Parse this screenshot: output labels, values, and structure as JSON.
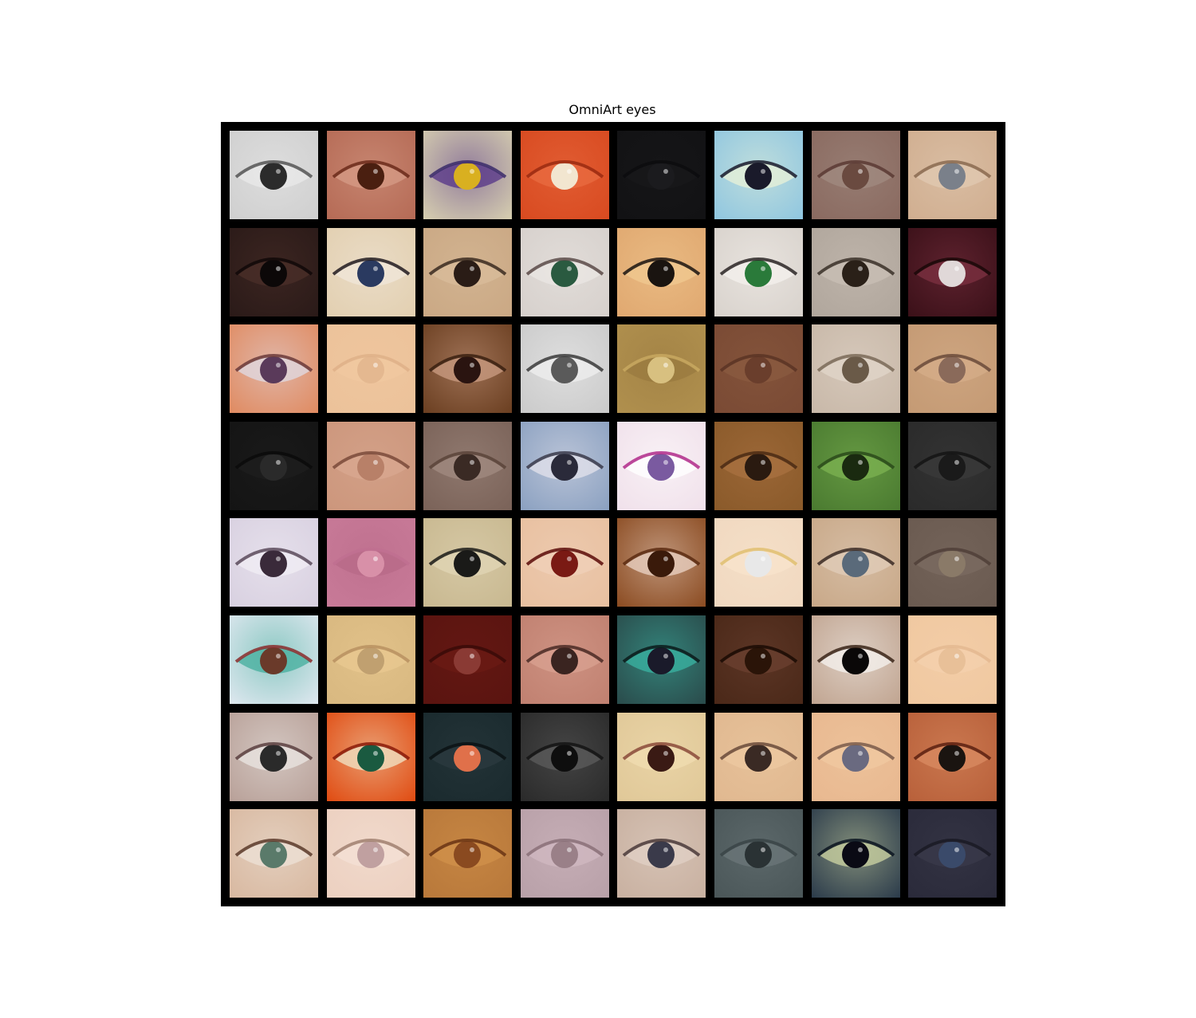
{
  "figure": {
    "title": "OmniArt eyes",
    "background_color": "#000000",
    "rows": 8,
    "cols": 8
  },
  "tiles": [
    {
      "bg": "#cfcfcf",
      "eye": "#2b2b2b",
      "white": "#e8e8e8",
      "lid": "#555555"
    },
    {
      "bg": "#b56a55",
      "eye": "#4a1f10",
      "white": "#d49a85",
      "lid": "#6b2a1a"
    },
    {
      "bg": "#d8d0b0",
      "eye": "#d9b020",
      "white": "#5a3a8a",
      "lid": "#3a2a6a"
    },
    {
      "bg": "#d84a20",
      "eye": "#f2e6d0",
      "white": "#e86a40",
      "lid": "#9a2a10"
    },
    {
      "bg": "#121214",
      "eye": "#1b1b1e",
      "white": "#18181a",
      "lid": "#0c0c0e"
    },
    {
      "bg": "#8fc6e0",
      "eye": "#1a1a2a",
      "white": "#e6f0d8",
      "lid": "#1a1a2a"
    },
    {
      "bg": "#8a6a60",
      "eye": "#6a4a40",
      "white": "#a08a80",
      "lid": "#5a3a34"
    },
    {
      "bg": "#d0ae90",
      "eye": "#7a808a",
      "white": "#e0c8b0",
      "lid": "#8a6a50"
    },
    {
      "bg": "#2a1a18",
      "eye": "#0c0808",
      "white": "#4a2e28",
      "lid": "#100808"
    },
    {
      "bg": "#e2cfb0",
      "eye": "#2a3a60",
      "white": "#f0e6d8",
      "lid": "#201a20"
    },
    {
      "bg": "#caa884",
      "eye": "#2a1c16",
      "white": "#d8bc9a",
      "lid": "#3a2a20"
    },
    {
      "bg": "#d6d0cc",
      "eye": "#2a5a40",
      "white": "#eae6e2",
      "lid": "#5a4a48"
    },
    {
      "bg": "#e0a870",
      "eye": "#1a1410",
      "white": "#f0c890",
      "lid": "#1a1410"
    },
    {
      "bg": "#d8d2cc",
      "eye": "#2a7a3a",
      "white": "#f4f0ec",
      "lid": "#2a2424"
    },
    {
      "bg": "#b0a69c",
      "eye": "#2a2018",
      "white": "#c8beb4",
      "lid": "#3a3028"
    },
    {
      "bg": "#3a1018",
      "eye": "#e0d8d8",
      "white": "#7a3040",
      "lid": "#1a0808"
    },
    {
      "bg": "#e08a60",
      "eye": "#5a3a5a",
      "white": "#e0d8e0",
      "lid": "#6a3a3a"
    },
    {
      "bg": "#ecc29a",
      "eye": "#e4b890",
      "white": "#f0c8a0",
      "lid": "#deb088"
    },
    {
      "bg": "#6a3e20",
      "eye": "#2a1410",
      "white": "#c89a80",
      "lid": "#3a2010"
    },
    {
      "bg": "#cacaca",
      "eye": "#5a5a5a",
      "white": "#eeeeee",
      "lid": "#3a3a3a"
    },
    {
      "bg": "#b0904e",
      "eye": "#d8c080",
      "white": "#9a7a40",
      "lid": "#c8a860"
    },
    {
      "bg": "#7a4a34",
      "eye": "#6a3e2c",
      "white": "#8a5a40",
      "lid": "#5a3424"
    },
    {
      "bg": "#c8b8a8",
      "eye": "#6a5a48",
      "white": "#e0d4c8",
      "lid": "#7a6a58"
    },
    {
      "bg": "#c49a74",
      "eye": "#8a6a5a",
      "white": "#d4ac88",
      "lid": "#6a4a3a"
    },
    {
      "bg": "#141414",
      "eye": "#2a2a2a",
      "white": "#1e1e1e",
      "lid": "#0a0a0a"
    },
    {
      "bg": "#cc967c",
      "eye": "#b88068",
      "white": "#d8a890",
      "lid": "#7a4a3a"
    },
    {
      "bg": "#7a6258",
      "eye": "#3a2a24",
      "white": "#a08a80",
      "lid": "#5a443a"
    },
    {
      "bg": "#8aa0c0",
      "eye": "#2a2a3a",
      "white": "#e0e0ea",
      "lid": "#3a3a4a"
    },
    {
      "bg": "#f0e0ea",
      "eye": "#7a5aa0",
      "white": "#ffffff",
      "lid": "#b02a8a"
    },
    {
      "bg": "#8a5a2a",
      "eye": "#2a1a10",
      "white": "#a87040",
      "lid": "#4a2a14"
    },
    {
      "bg": "#4a7a30",
      "eye": "#1a2a10",
      "white": "#7ab050",
      "lid": "#2a4a1a"
    },
    {
      "bg": "#2a2a2a",
      "eye": "#1a1a1a",
      "white": "#3a3a3a",
      "lid": "#141414"
    },
    {
      "bg": "#d8d0e0",
      "eye": "#3a2a3a",
      "white": "#f0ecf4",
      "lid": "#5a4a5a"
    },
    {
      "bg": "#c87a98",
      "eye": "#d890a8",
      "white": "#b86a88",
      "lid": "#c07090"
    },
    {
      "bg": "#c8b890",
      "eye": "#1a1a18",
      "white": "#e0d4b4",
      "lid": "#1a1a18"
    },
    {
      "bg": "#e8c0a0",
      "eye": "#7a1a14",
      "white": "#f0d0b8",
      "lid": "#5a0a08"
    },
    {
      "bg": "#8a4a20",
      "eye": "#3a1a0a",
      "white": "#e8d0c0",
      "lid": "#5a2a10"
    },
    {
      "bg": "#f0d8c0",
      "eye": "#e8e8e8",
      "white": "#f8e4cc",
      "lid": "#e0c070"
    },
    {
      "bg": "#c8a888",
      "eye": "#5a6a7a",
      "white": "#e0ccb8",
      "lid": "#3a2a24"
    },
    {
      "bg": "#6a5a50",
      "eye": "#8a7a68",
      "white": "#7a6a60",
      "lid": "#504038"
    },
    {
      "bg": "#e0e8f0",
      "eye": "#6a3a2a",
      "white": "#4ab0a0",
      "lid": "#8a2a2a"
    },
    {
      "bg": "#d8b880",
      "eye": "#c0a070",
      "white": "#e8c890",
      "lid": "#b89060"
    },
    {
      "bg": "#5a1410",
      "eye": "#8a3a34",
      "white": "#6a1a14",
      "lid": "#3a0a08"
    },
    {
      "bg": "#c08070",
      "eye": "#3a2420",
      "white": "#d8a090",
      "lid": "#4a2a24"
    },
    {
      "bg": "#2a4a4a",
      "eye": "#1a1a2a",
      "white": "#3ab0a0",
      "lid": "#0a1a1a"
    },
    {
      "bg": "#4a2818",
      "eye": "#2a1408",
      "white": "#6a4030",
      "lid": "#1a0a04"
    },
    {
      "bg": "#c0a490",
      "eye": "#0a0808",
      "white": "#f4f0ec",
      "lid": "#3a2418"
    },
    {
      "bg": "#f0c8a0",
      "eye": "#e8c098",
      "white": "#f4d0ac",
      "lid": "#e4b890"
    },
    {
      "bg": "#b8a098",
      "eye": "#2a2a2a",
      "white": "#e8e4e0",
      "lid": "#5a4040"
    },
    {
      "bg": "#e04a10",
      "eye": "#1a5a40",
      "white": "#f0e0c0",
      "lid": "#8a1a08"
    },
    {
      "bg": "#1a2a2e",
      "eye": "#e0704a",
      "white": "#2a3a3e",
      "lid": "#0a1214"
    },
    {
      "bg": "#2a2a2a",
      "eye": "#0e0e0e",
      "white": "#5a5a5a",
      "lid": "#141414"
    },
    {
      "bg": "#e0c898",
      "eye": "#3a1a14",
      "white": "#f0dcb0",
      "lid": "#8a4a3a"
    },
    {
      "bg": "#e0b890",
      "eye": "#3a2a24",
      "white": "#ecc8a0",
      "lid": "#6a4a3a"
    },
    {
      "bg": "#e8b890",
      "eye": "#6a6a80",
      "white": "#f0c8a0",
      "lid": "#7a5a4a"
    },
    {
      "bg": "#b8603a",
      "eye": "#1a1410",
      "white": "#d88a60",
      "lid": "#5a2010"
    },
    {
      "bg": "#d8b8a0",
      "eye": "#5a7a6a",
      "white": "#ece0d4",
      "lid": "#5a3a2a"
    },
    {
      "bg": "#ecd0c0",
      "eye": "#c0a0a0",
      "white": "#f4e0d4",
      "lid": "#a08070"
    },
    {
      "bg": "#b8783a",
      "eye": "#8a4a20",
      "white": "#d0904a",
      "lid": "#6a3414"
    },
    {
      "bg": "#b8a0a8",
      "eye": "#9a8088",
      "white": "#d0b8c0",
      "lid": "#8a7078"
    },
    {
      "bg": "#c8b0a0",
      "eye": "#3a3a4a",
      "white": "#e0d0c4",
      "lid": "#4a3a3a"
    },
    {
      "bg": "#4a5658",
      "eye": "#2a3234",
      "white": "#6a7678",
      "lid": "#3a4446"
    },
    {
      "bg": "#2a3a4a",
      "eye": "#0a0a14",
      "white": "#c8d0a0",
      "lid": "#0a1420"
    },
    {
      "bg": "#2a2a3a",
      "eye": "#3a4a6a",
      "white": "#3a3a4a",
      "lid": "#1a1a24"
    }
  ]
}
